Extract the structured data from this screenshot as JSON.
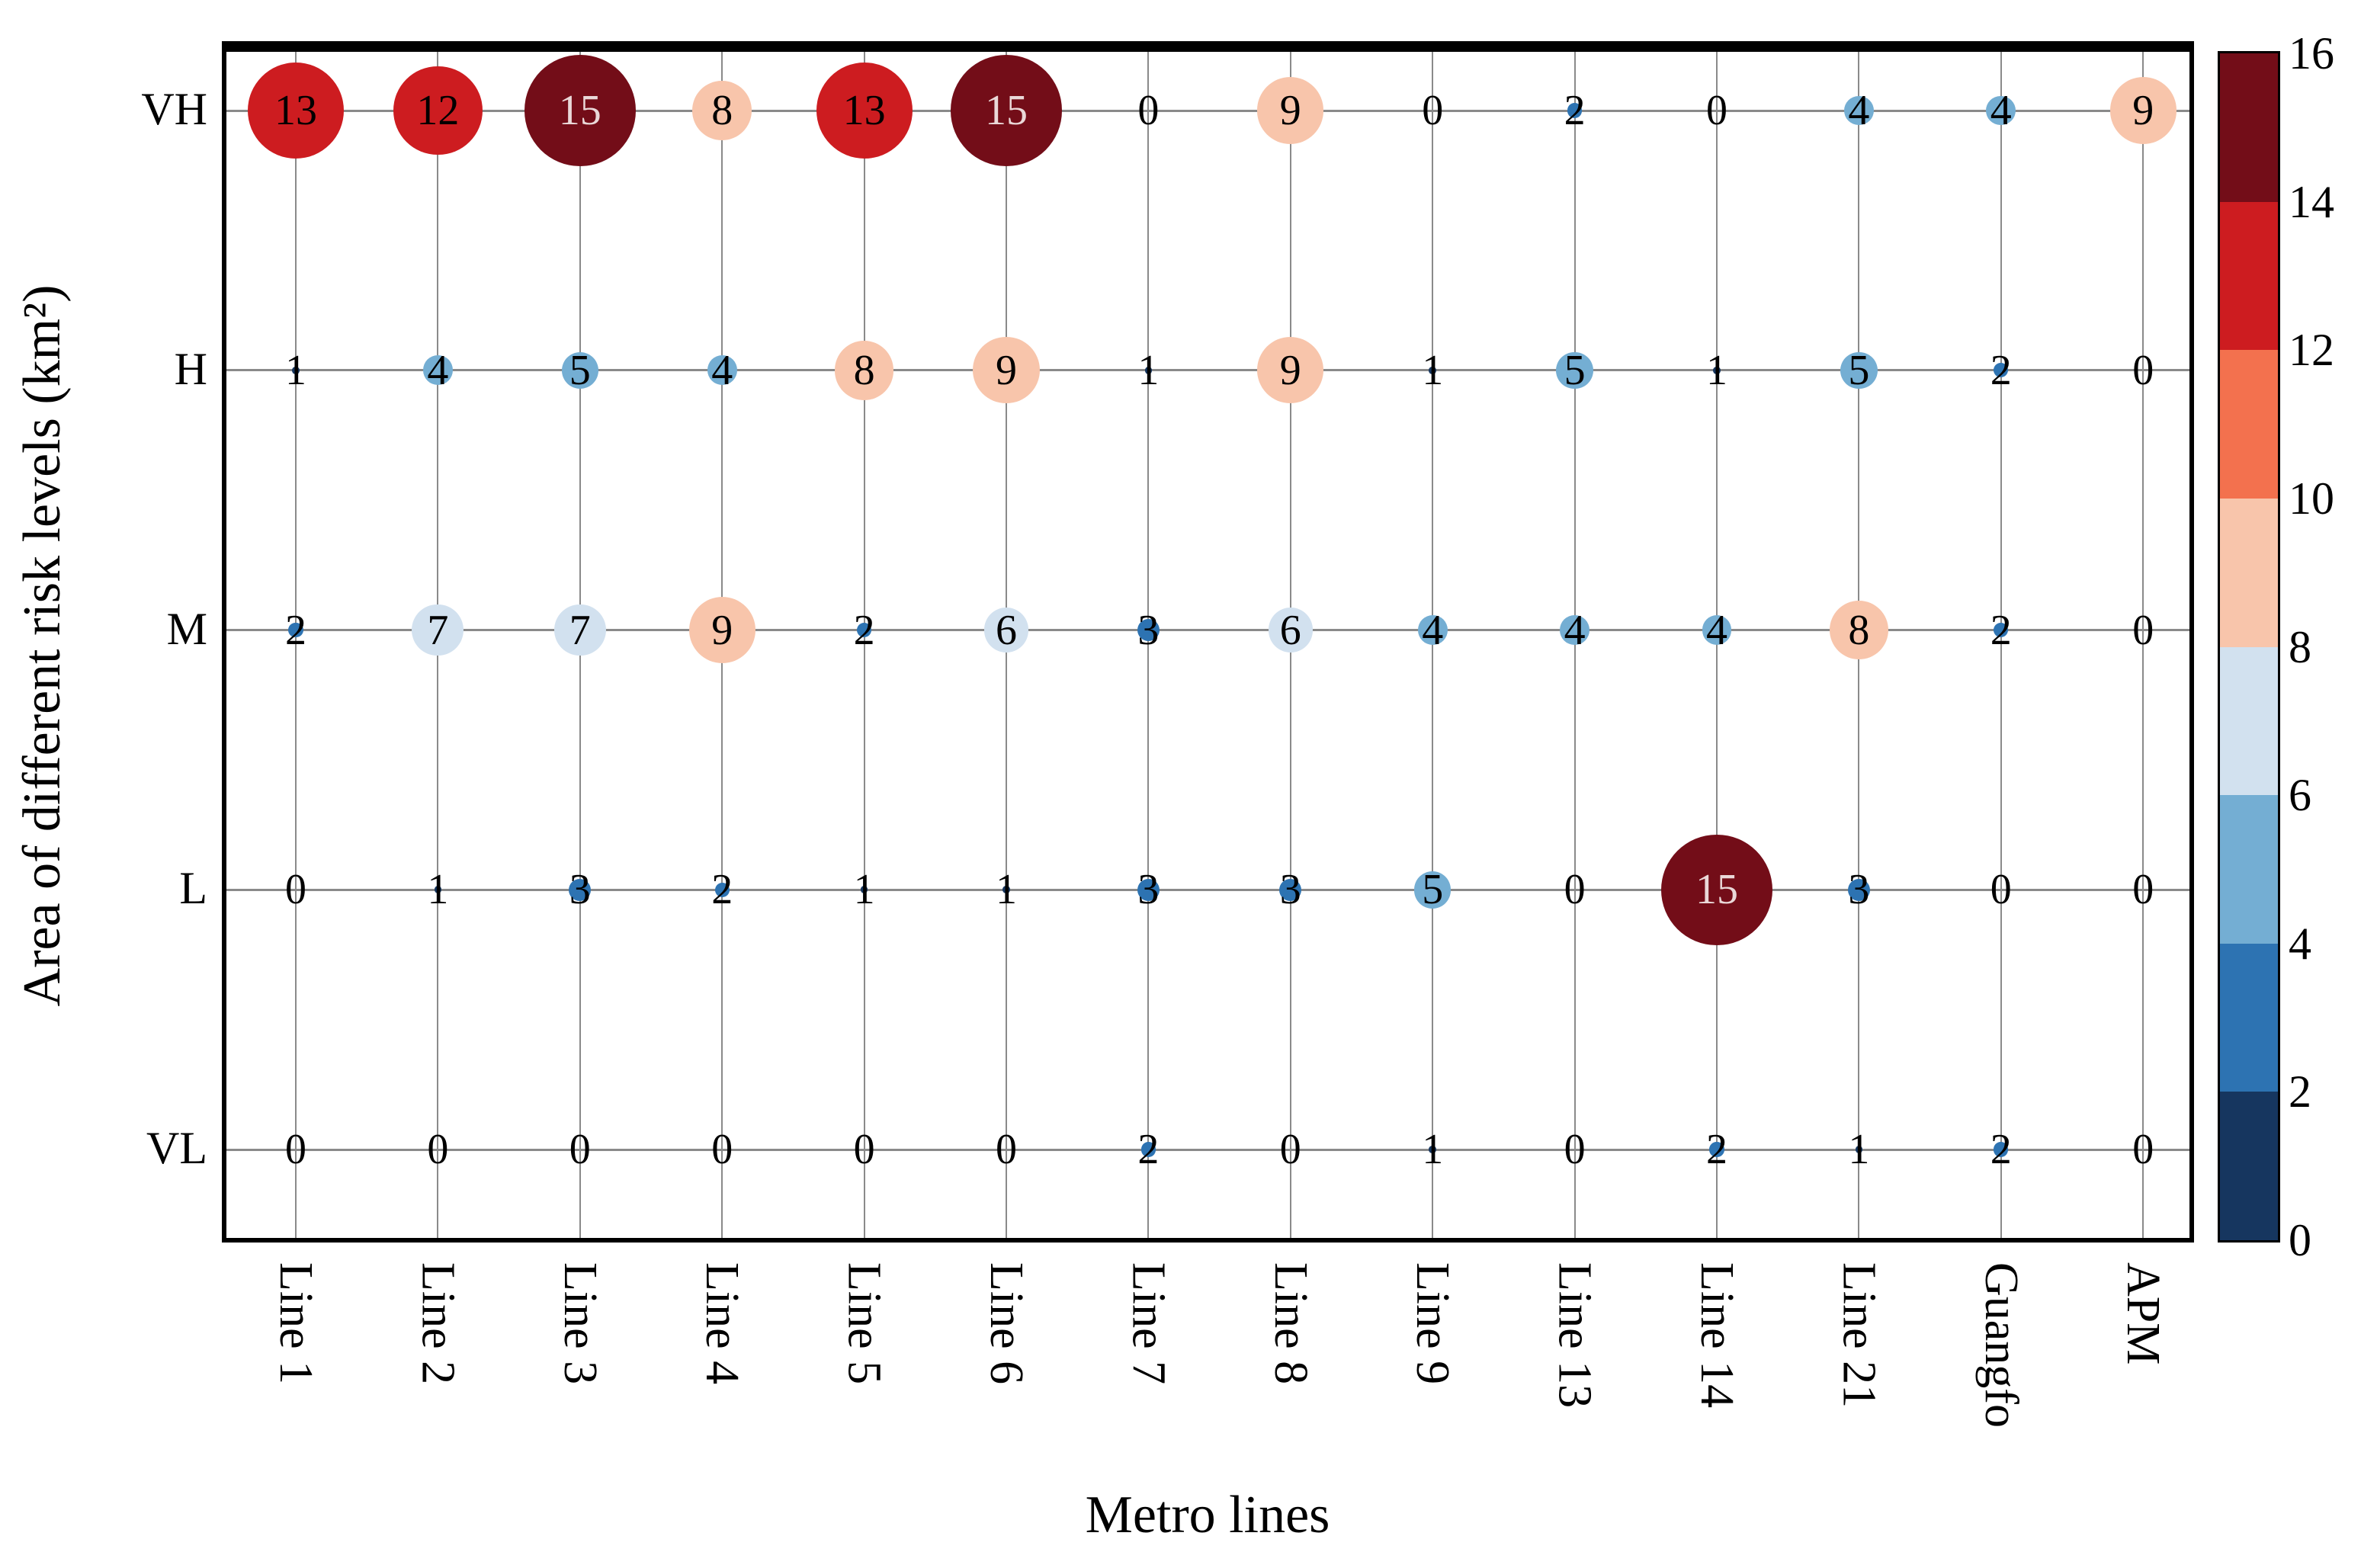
{
  "chart_data": {
    "type": "bubble",
    "title": "",
    "xlabel": "Metro lines",
    "ylabel": "Area of different risk levels (km²)",
    "x_categories": [
      "Line 1",
      "Line 2",
      "Line 3",
      "Line 4",
      "Line 5",
      "Line 6",
      "Line 7",
      "Line 8",
      "Line 9",
      "Line 13",
      "Line 14",
      "Line 21",
      "Guangfo",
      "APM"
    ],
    "y_categories": [
      "VH",
      "H",
      "M",
      "L",
      "VL"
    ],
    "series": [
      {
        "name": "VH",
        "values": [
          13,
          12,
          15,
          8,
          13,
          15,
          0,
          9,
          0,
          2,
          0,
          4,
          4,
          9
        ]
      },
      {
        "name": "H",
        "values": [
          1,
          4,
          5,
          4,
          8,
          9,
          1,
          9,
          1,
          5,
          1,
          5,
          2,
          0
        ]
      },
      {
        "name": "M",
        "values": [
          2,
          7,
          7,
          9,
          2,
          6,
          3,
          6,
          4,
          4,
          4,
          8,
          2,
          0
        ]
      },
      {
        "name": "L",
        "values": [
          0,
          1,
          3,
          2,
          1,
          1,
          3,
          3,
          5,
          0,
          15,
          3,
          0,
          0
        ]
      },
      {
        "name": "VL",
        "values": [
          0,
          0,
          0,
          0,
          0,
          0,
          2,
          0,
          1,
          0,
          2,
          1,
          2,
          0
        ]
      }
    ],
    "legend_position": "right-colorbar",
    "grid": true,
    "colorbar": {
      "min": 0,
      "max": 16,
      "ticks": [
        16,
        14,
        12,
        10,
        8,
        6,
        4,
        2,
        0
      ],
      "bin_colors": [
        "#16365f",
        "#2d73b2",
        "#74aed3",
        "#d2e1ef",
        "#f8c5ab",
        "#f3714e",
        "#cd1c20",
        "#730d18"
      ]
    },
    "bubble_text_dark": "#000000",
    "bubble_text_light": "#ead8d8"
  }
}
